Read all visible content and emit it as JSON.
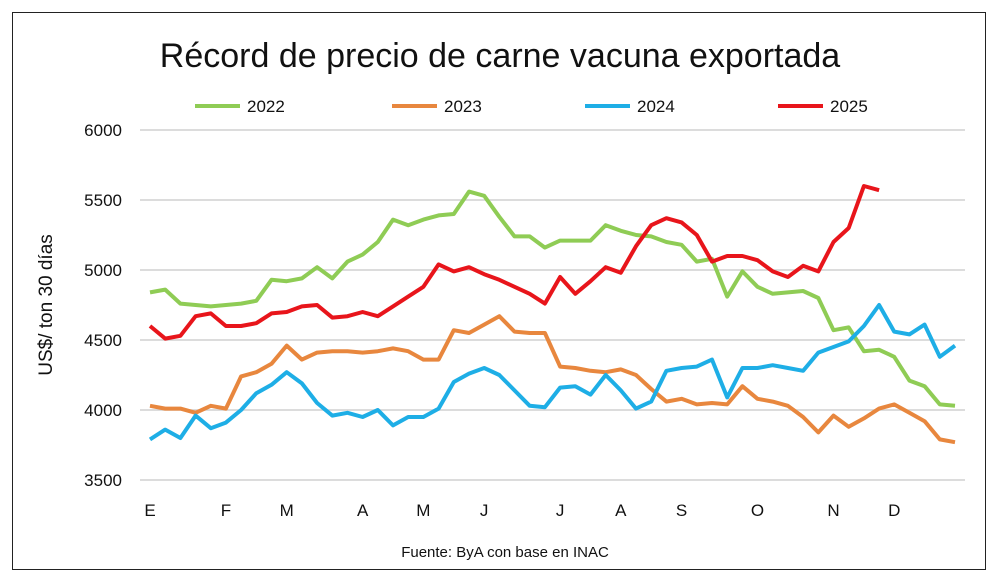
{
  "chart_data": {
    "type": "line",
    "title": "Récord de precio de carne vacuna exportada",
    "ylabel": "US$/ ton 30 días",
    "xlabel": "",
    "source": "Fuente: ByA con base en INAC",
    "ylim": [
      3500,
      6000
    ],
    "yticks": [
      3500,
      4000,
      4500,
      5000,
      5500,
      6000
    ],
    "grid": true,
    "legend_position": "top",
    "x_unit": "week index",
    "xlim": [
      0,
      53
    ],
    "month_ticks": [
      {
        "label": "E",
        "week": 0
      },
      {
        "label": "F",
        "week": 5
      },
      {
        "label": "M",
        "week": 9
      },
      {
        "label": "A",
        "week": 14
      },
      {
        "label": "M",
        "week": 18
      },
      {
        "label": "J",
        "week": 22
      },
      {
        "label": "J",
        "week": 27
      },
      {
        "label": "A",
        "week": 31
      },
      {
        "label": "S",
        "week": 35
      },
      {
        "label": "O",
        "week": 40
      },
      {
        "label": "N",
        "week": 45
      },
      {
        "label": "D",
        "week": 49
      }
    ],
    "series": [
      {
        "name": "2022",
        "color": "#8fcc55",
        "values": [
          4840,
          4860,
          4760,
          4750,
          4740,
          4750,
          4760,
          4780,
          4930,
          4920,
          4940,
          5020,
          4940,
          5060,
          5110,
          5200,
          5360,
          5320,
          5360,
          5390,
          5400,
          5560,
          5530,
          5380,
          5240,
          5240,
          5160,
          5210,
          5210,
          5210,
          5320,
          5280,
          5250,
          5240,
          5200,
          5180,
          5060,
          5080,
          4810,
          4990,
          4880,
          4830,
          4840,
          4850,
          4800,
          4570,
          4590,
          4420,
          4430,
          4380,
          4210,
          4170,
          4040,
          4030
        ]
      },
      {
        "name": "2023",
        "color": "#e8873e",
        "values": [
          4030,
          4010,
          4010,
          3980,
          4030,
          4010,
          4240,
          4270,
          4330,
          4460,
          4360,
          4410,
          4420,
          4420,
          4410,
          4420,
          4440,
          4420,
          4360,
          4360,
          4570,
          4550,
          4610,
          4670,
          4560,
          4550,
          4550,
          4310,
          4300,
          4280,
          4270,
          4290,
          4250,
          4150,
          4060,
          4080,
          4040,
          4050,
          4040,
          4170,
          4080,
          4060,
          4030,
          3950,
          3840,
          3960,
          3880,
          3940,
          4010,
          4040,
          3980,
          3920,
          3790,
          3770
        ]
      },
      {
        "name": "2024",
        "color": "#1eaee6",
        "values": [
          3790,
          3860,
          3800,
          3960,
          3870,
          3910,
          4000,
          4120,
          4180,
          4270,
          4190,
          4050,
          3960,
          3980,
          3950,
          4000,
          3890,
          3950,
          3950,
          4010,
          4200,
          4260,
          4300,
          4250,
          4140,
          4030,
          4020,
          4160,
          4170,
          4110,
          4250,
          4140,
          4010,
          4060,
          4280,
          4300,
          4310,
          4360,
          4090,
          4300,
          4300,
          4320,
          4300,
          4280,
          4410,
          4450,
          4490,
          4600,
          4750,
          4560,
          4540,
          4610,
          4380,
          4460
        ]
      },
      {
        "name": "2025",
        "color": "#e8151b",
        "values": [
          4600,
          4510,
          4530,
          4670,
          4690,
          4600,
          4600,
          4620,
          4690,
          4700,
          4740,
          4750,
          4660,
          4670,
          4700,
          4670,
          4740,
          4810,
          4880,
          5040,
          4990,
          5020,
          4970,
          4930,
          4880,
          4830,
          4760,
          4950,
          4830,
          4920,
          5020,
          4980,
          5170,
          5320,
          5370,
          5340,
          5250,
          5060,
          5100,
          5100,
          5070,
          4990,
          4950,
          5030,
          4990,
          5200,
          5300,
          5600,
          5570
        ]
      }
    ]
  }
}
